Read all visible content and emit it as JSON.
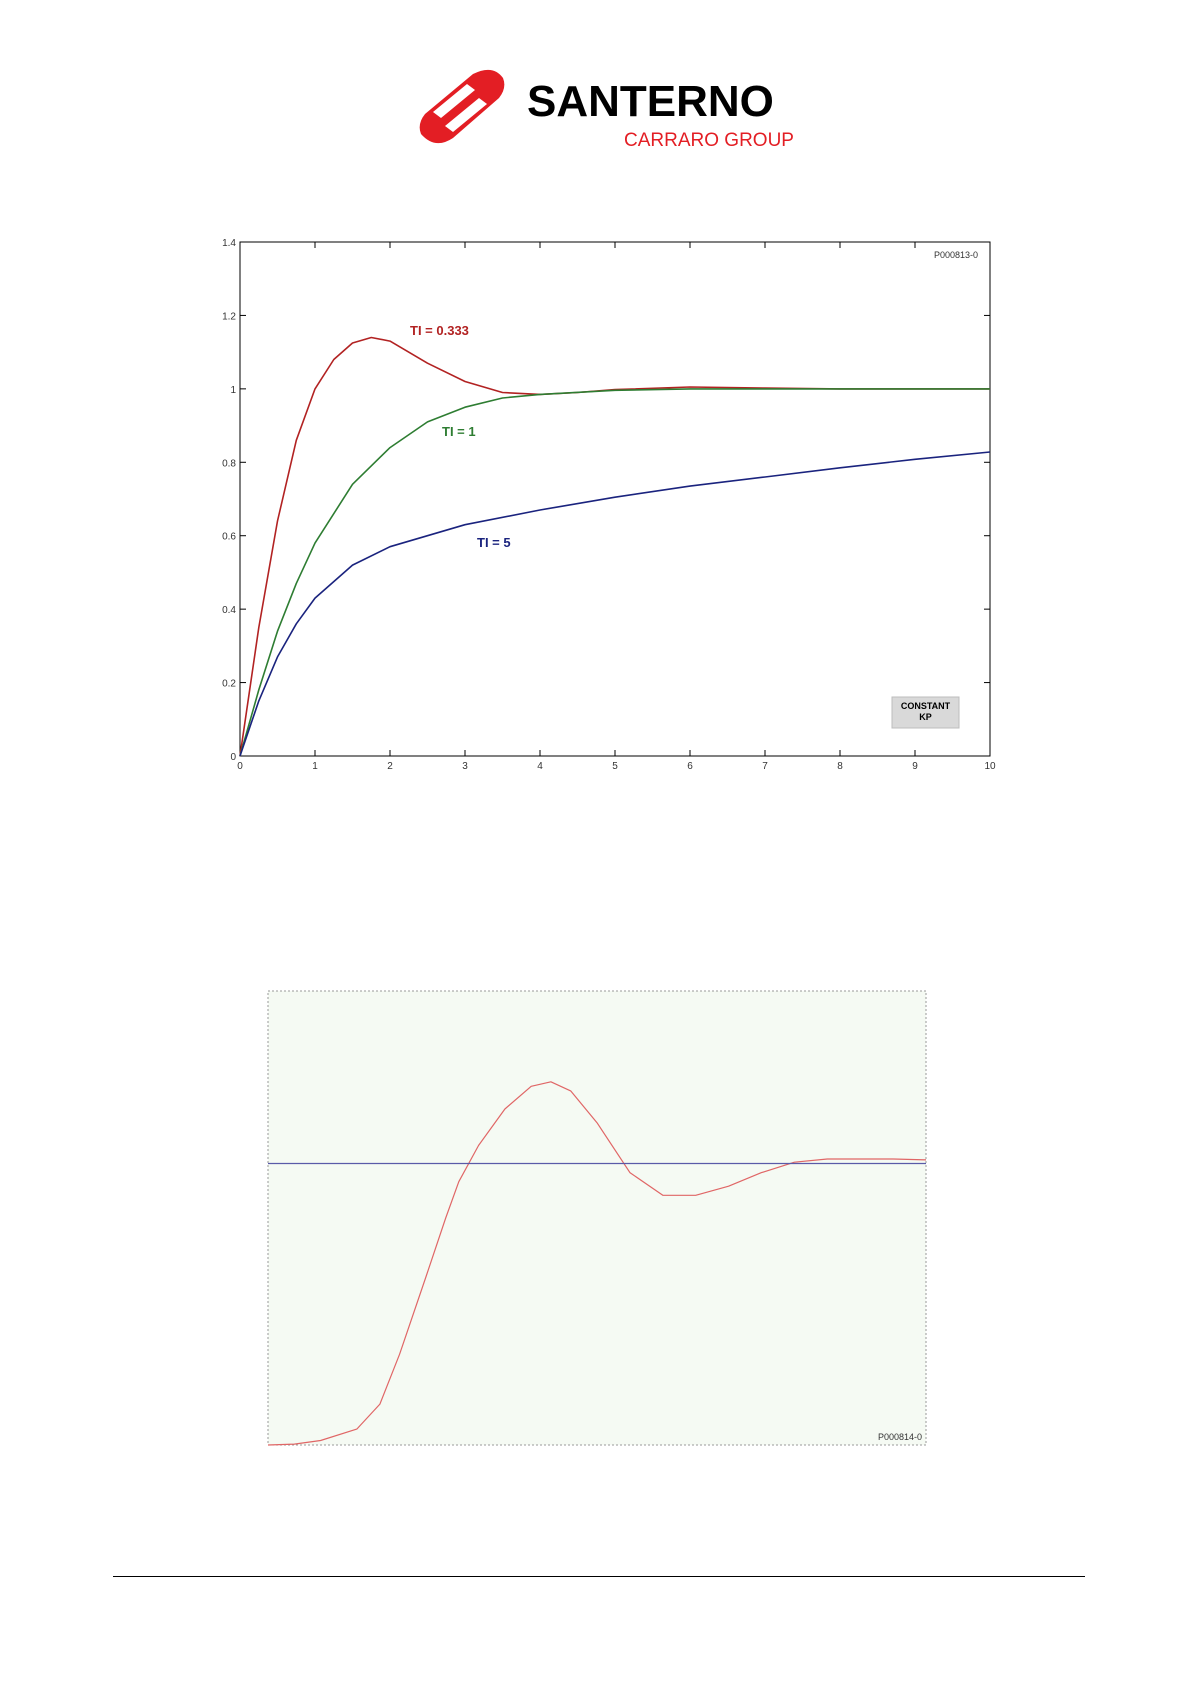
{
  "logo": {
    "brand": "SANTERNO",
    "group": "CARRARO GROUP",
    "colors": {
      "red": "#e31e24",
      "black": "#000000"
    }
  },
  "chart_data": [
    {
      "type": "line",
      "ref_code": "P000813-0",
      "xlim": [
        0,
        10
      ],
      "ylim": [
        0,
        1.4
      ],
      "x_ticks": [
        0,
        1,
        2,
        3,
        4,
        5,
        6,
        7,
        8,
        9,
        10
      ],
      "x_tick_labels": [
        "0",
        "1",
        "2",
        "3",
        "4",
        "5",
        "6",
        "7",
        "8",
        "9",
        "10"
      ],
      "y_ticks": [
        0,
        0.2,
        0.4,
        0.6,
        0.8,
        1,
        1.2,
        1.4
      ],
      "y_tick_labels": [
        "0",
        "0.2",
        "0.4",
        "0.6",
        "0.8",
        "1",
        "1.2",
        "1.4"
      ],
      "grid": false,
      "legend_box": {
        "line1": "CONSTANT",
        "line2": "KP",
        "placement": "bottom-right"
      },
      "series": [
        {
          "name": "TI = 0.333",
          "color": "#b22222",
          "points": [
            [
              0,
              0
            ],
            [
              0.25,
              0.35
            ],
            [
              0.5,
              0.64
            ],
            [
              0.75,
              0.86
            ],
            [
              1,
              1.0
            ],
            [
              1.25,
              1.08
            ],
            [
              1.5,
              1.125
            ],
            [
              1.75,
              1.14
            ],
            [
              2,
              1.13
            ],
            [
              2.5,
              1.07
            ],
            [
              3,
              1.02
            ],
            [
              3.5,
              0.99
            ],
            [
              4,
              0.985
            ],
            [
              4.5,
              0.99
            ],
            [
              5,
              0.998
            ],
            [
              6,
              1.005
            ],
            [
              7,
              1.002
            ],
            [
              8,
              1.0
            ],
            [
              10,
              1.0
            ]
          ]
        },
        {
          "name": "TI = 1",
          "color": "#2e7d32",
          "points": [
            [
              0,
              0
            ],
            [
              0.25,
              0.18
            ],
            [
              0.5,
              0.34
            ],
            [
              0.75,
              0.47
            ],
            [
              1,
              0.58
            ],
            [
              1.5,
              0.74
            ],
            [
              2,
              0.84
            ],
            [
              2.5,
              0.91
            ],
            [
              3,
              0.95
            ],
            [
              3.5,
              0.975
            ],
            [
              4,
              0.985
            ],
            [
              5,
              0.996
            ],
            [
              6,
              1.0
            ],
            [
              10,
              1.0
            ]
          ]
        },
        {
          "name": "TI = 5",
          "color": "#1a237e",
          "points": [
            [
              0,
              0
            ],
            [
              0.25,
              0.15
            ],
            [
              0.5,
              0.27
            ],
            [
              0.75,
              0.36
            ],
            [
              1,
              0.43
            ],
            [
              1.5,
              0.52
            ],
            [
              2,
              0.57
            ],
            [
              3,
              0.63
            ],
            [
              4,
              0.67
            ],
            [
              5,
              0.705
            ],
            [
              6,
              0.735
            ],
            [
              7,
              0.76
            ],
            [
              8,
              0.785
            ],
            [
              9,
              0.808
            ],
            [
              10,
              0.828
            ]
          ]
        }
      ]
    },
    {
      "type": "line",
      "ref_code": "P000814-0",
      "background": "#f5faf3",
      "xlim": [
        0,
        1
      ],
      "ylim": [
        0,
        1
      ],
      "series": [
        {
          "color": "#e06666",
          "points": [
            [
              0,
              0
            ],
            [
              0.04,
              0.002
            ],
            [
              0.08,
              0.01
            ],
            [
              0.135,
              0.035
            ],
            [
              0.17,
              0.09
            ],
            [
              0.2,
              0.2
            ],
            [
              0.24,
              0.37
            ],
            [
              0.27,
              0.5
            ],
            [
              0.29,
              0.58
            ],
            [
              0.32,
              0.66
            ],
            [
              0.36,
              0.74
            ],
            [
              0.4,
              0.79
            ],
            [
              0.43,
              0.8
            ],
            [
              0.46,
              0.78
            ],
            [
              0.5,
              0.71
            ],
            [
              0.55,
              0.6
            ],
            [
              0.6,
              0.55
            ],
            [
              0.65,
              0.55
            ],
            [
              0.7,
              0.57
            ],
            [
              0.75,
              0.6
            ],
            [
              0.8,
              0.623
            ],
            [
              0.85,
              0.63
            ],
            [
              0.9,
              0.63
            ],
            [
              0.95,
              0.63
            ],
            [
              1,
              0.628
            ]
          ]
        },
        {
          "color": "#5a5aa8",
          "points": [
            [
              0,
              0.62
            ],
            [
              1,
              0.62
            ]
          ]
        }
      ]
    }
  ]
}
